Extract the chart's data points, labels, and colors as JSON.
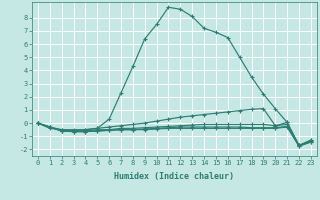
{
  "title": "",
  "xlabel": "Humidex (Indice chaleur)",
  "bg_color": "#c5e8e5",
  "grid_color": "#ffffff",
  "line_color": "#2e7d72",
  "xlim": [
    -0.5,
    23.5
  ],
  "ylim": [
    -2.5,
    9.2
  ],
  "yticks": [
    -2,
    -1,
    0,
    1,
    2,
    3,
    4,
    5,
    6,
    7,
    8
  ],
  "xticks": [
    0,
    1,
    2,
    3,
    4,
    5,
    6,
    7,
    8,
    9,
    10,
    11,
    12,
    13,
    14,
    15,
    16,
    17,
    18,
    19,
    20,
    21,
    22,
    23
  ],
  "lines": [
    {
      "x": [
        0,
        1,
        2,
        3,
        4,
        5,
        6,
        7,
        8,
        9,
        10,
        11,
        12,
        13,
        14,
        15,
        16,
        17,
        18,
        19,
        20,
        21,
        22,
        23
      ],
      "y": [
        0.0,
        -0.4,
        -0.5,
        -0.6,
        -0.5,
        -0.4,
        0.3,
        2.3,
        4.3,
        6.4,
        7.5,
        8.8,
        8.65,
        8.1,
        7.2,
        6.9,
        6.5,
        5.0,
        3.5,
        2.2,
        1.1,
        0.05,
        -1.7,
        -1.3
      ]
    },
    {
      "x": [
        0,
        1,
        2,
        3,
        4,
        5,
        6,
        7,
        8,
        9,
        10,
        11,
        12,
        13,
        14,
        15,
        16,
        17,
        18,
        19,
        20,
        21,
        22,
        23
      ],
      "y": [
        0.0,
        -0.3,
        -0.5,
        -0.5,
        -0.5,
        -0.4,
        -0.3,
        -0.2,
        -0.1,
        0.0,
        0.15,
        0.3,
        0.45,
        0.55,
        0.65,
        0.75,
        0.85,
        0.95,
        1.05,
        1.1,
        -0.2,
        0.05,
        -1.7,
        -1.3
      ]
    },
    {
      "x": [
        0,
        1,
        2,
        3,
        4,
        5,
        6,
        7,
        8,
        9,
        10,
        11,
        12,
        13,
        14,
        15,
        16,
        17,
        18,
        19,
        20,
        21,
        22,
        23
      ],
      "y": [
        0.0,
        -0.3,
        -0.6,
        -0.6,
        -0.6,
        -0.5,
        -0.5,
        -0.4,
        -0.4,
        -0.35,
        -0.3,
        -0.25,
        -0.2,
        -0.15,
        -0.1,
        -0.1,
        -0.1,
        -0.1,
        -0.1,
        -0.1,
        -0.2,
        -0.1,
        -1.7,
        -1.35
      ]
    },
    {
      "x": [
        0,
        1,
        2,
        3,
        4,
        5,
        6,
        7,
        8,
        9,
        10,
        11,
        12,
        13,
        14,
        15,
        16,
        17,
        18,
        19,
        20,
        21,
        22,
        23
      ],
      "y": [
        0.0,
        -0.3,
        -0.6,
        -0.65,
        -0.65,
        -0.6,
        -0.55,
        -0.5,
        -0.5,
        -0.45,
        -0.4,
        -0.35,
        -0.3,
        -0.3,
        -0.3,
        -0.3,
        -0.3,
        -0.3,
        -0.35,
        -0.35,
        -0.35,
        -0.25,
        -1.75,
        -1.4
      ]
    },
    {
      "x": [
        0,
        1,
        2,
        3,
        4,
        5,
        6,
        7,
        8,
        9,
        10,
        11,
        12,
        13,
        14,
        15,
        16,
        17,
        18,
        19,
        20,
        21,
        22,
        23
      ],
      "y": [
        0.0,
        -0.3,
        -0.6,
        -0.65,
        -0.65,
        -0.6,
        -0.55,
        -0.5,
        -0.5,
        -0.5,
        -0.45,
        -0.4,
        -0.4,
        -0.4,
        -0.4,
        -0.4,
        -0.4,
        -0.4,
        -0.4,
        -0.4,
        -0.4,
        -0.3,
        -1.75,
        -1.45
      ]
    }
  ]
}
